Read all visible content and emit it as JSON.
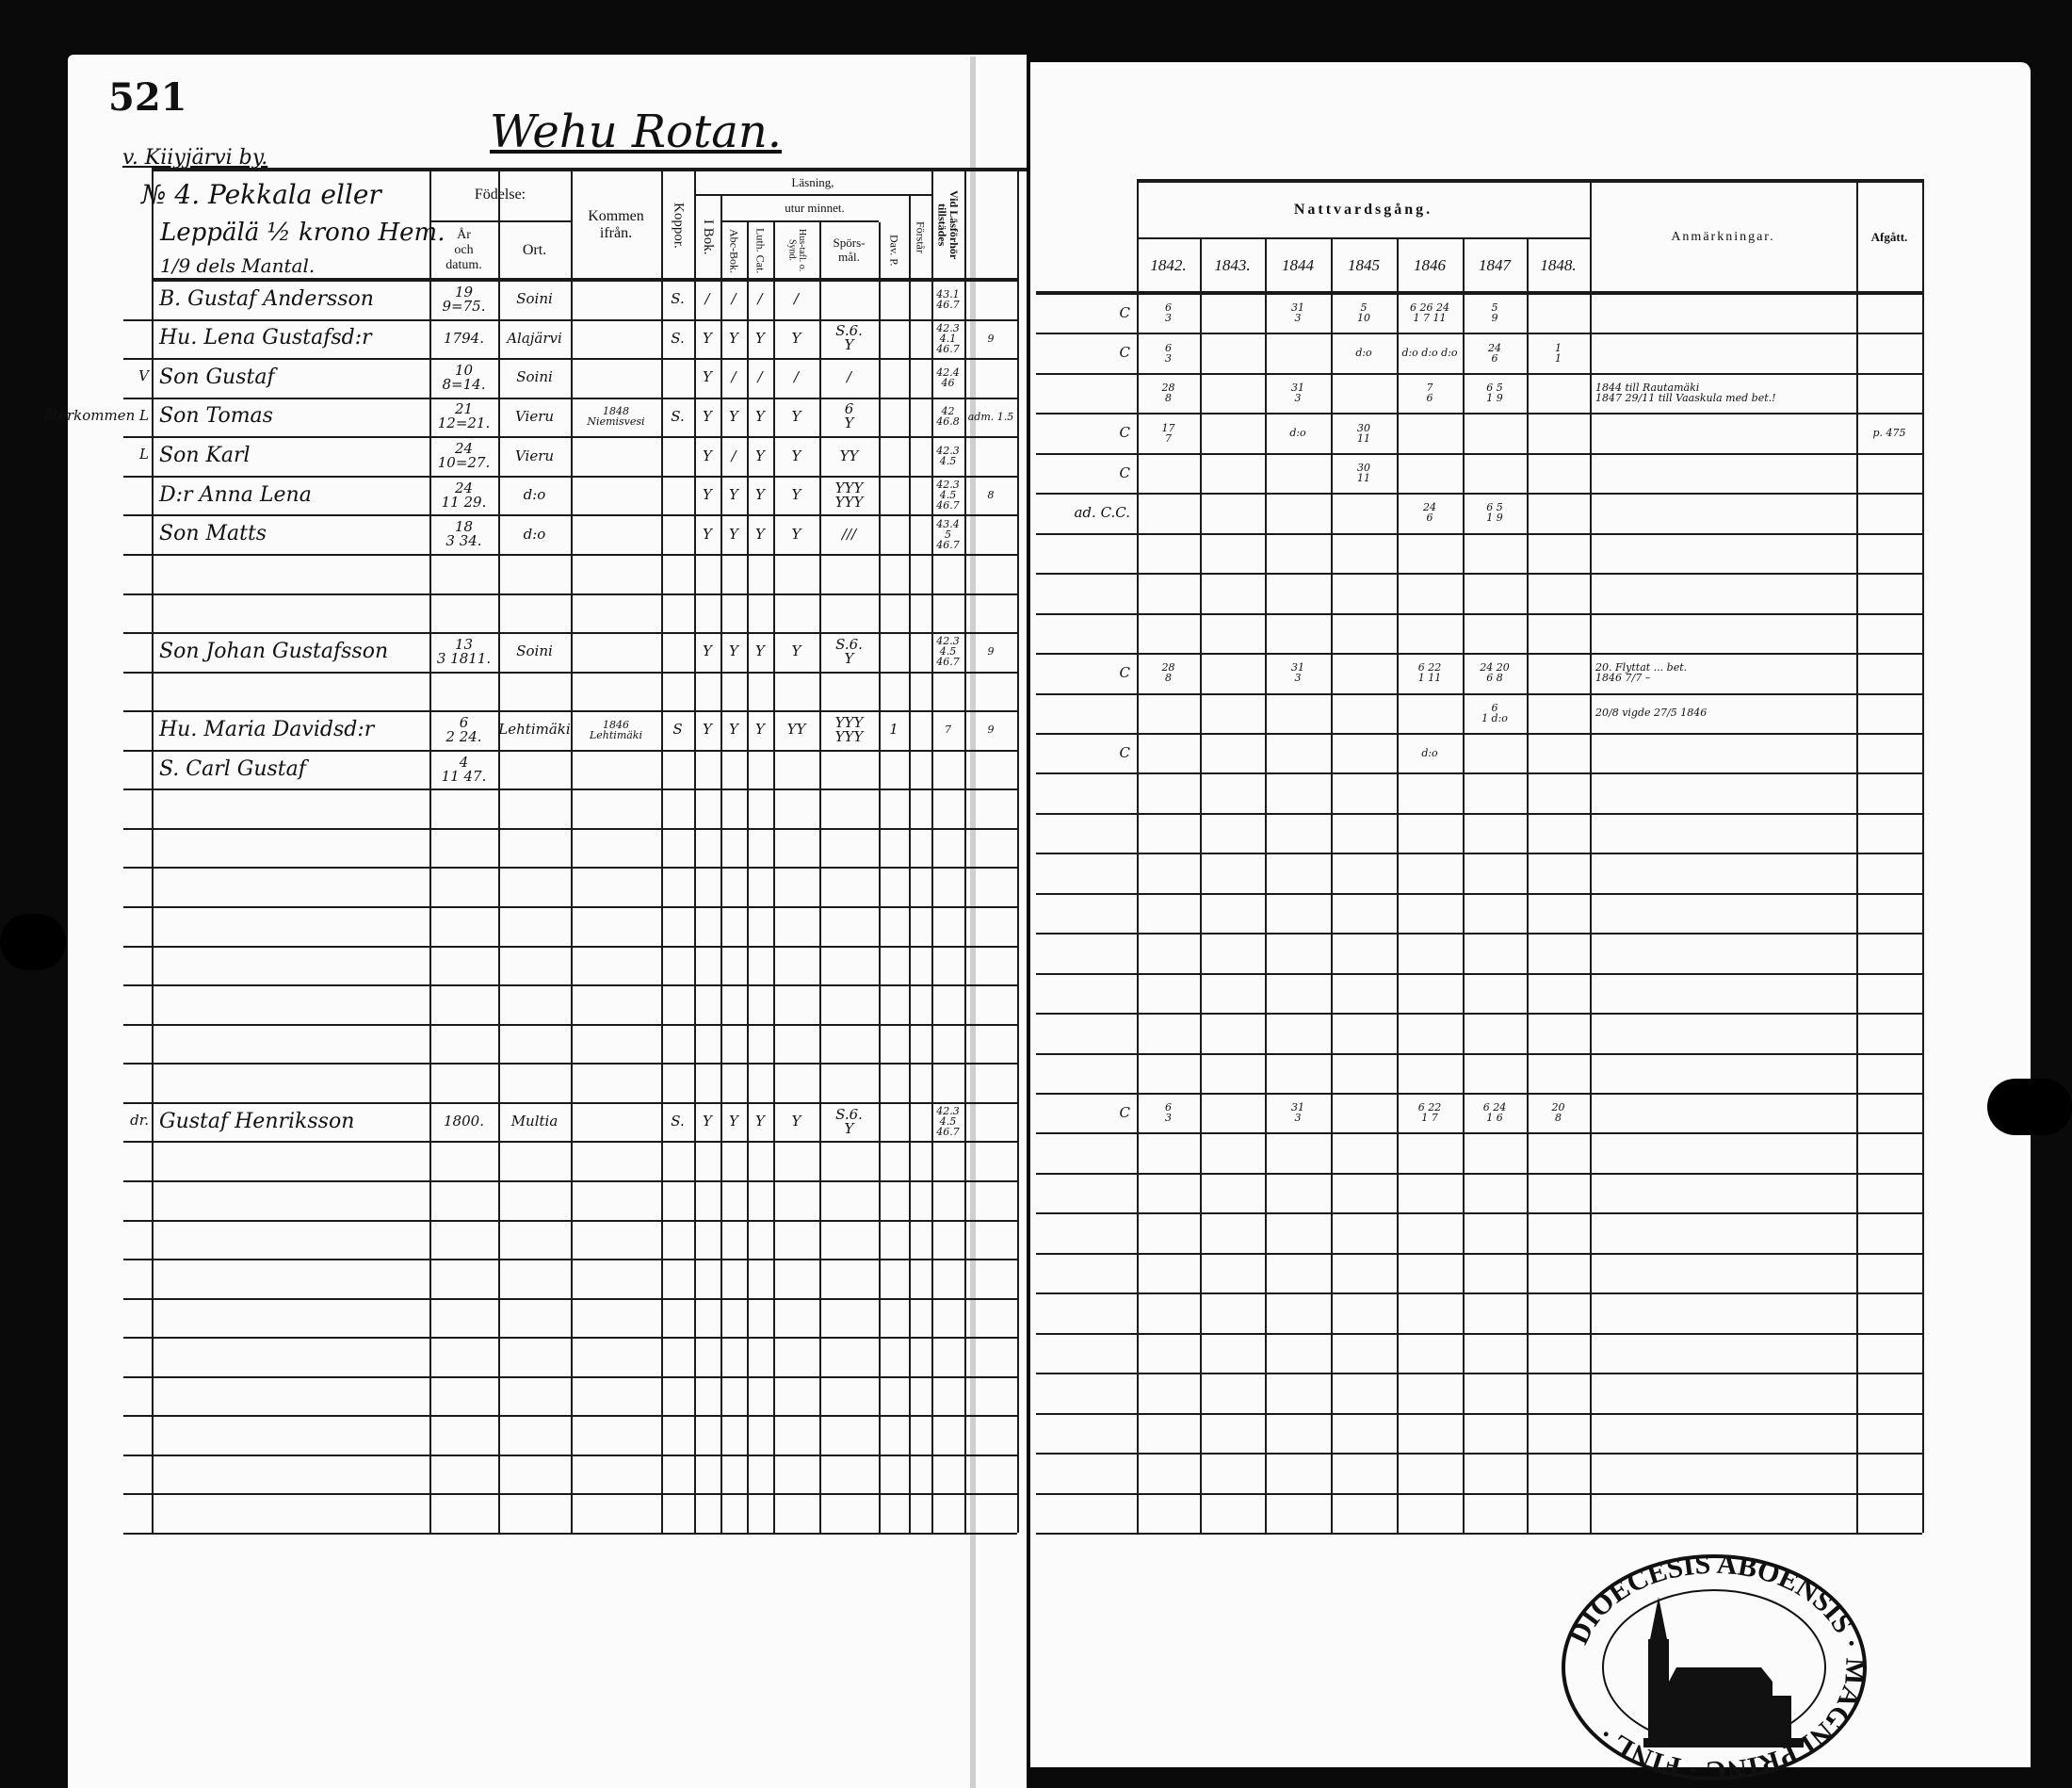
{
  "left_page": {
    "page_number": "521",
    "village": "v. Kiiyjärvi by.",
    "title": "Wehu Rotan.",
    "household": [
      "№ 4. Pekkala eller",
      "Leppälä ½ krono Hem.",
      "1/9 dels Mantal."
    ],
    "headers": {
      "fodelse": "Födelse:",
      "ar_och_datum": "År\noch\ndatum.",
      "ort": "Ort.",
      "kommen_ifran": "Kommen\nifrån.",
      "koppor": "Koppor.",
      "lasning": "Läsning,",
      "utur_minnet": "utur minnet.",
      "i_bok": "I Bok.",
      "abc_bok": "Abc-Bok.",
      "luth_cat": "Luth. Cat.",
      "hus_tafl": "Hus-tafl. o. Synd.",
      "spors_mal": "Spörs-\nmål.",
      "dav_p": "Dav. P.",
      "forstar": "Förstår",
      "vid_lasforhor": "Vid Läsförhör tillstädes"
    },
    "rows": [
      {
        "row": 0,
        "margin": "",
        "values": [
          "B. Gustaf Andersson",
          "19\n9=75.",
          "Soini",
          "",
          "S.",
          "/",
          "/",
          "/",
          "/",
          "",
          "",
          "",
          "43.1\n46.7",
          ""
        ]
      },
      {
        "row": 1,
        "margin": "",
        "values": [
          "Hu. Lena Gustafsd:r",
          "1794.",
          "Alajärvi",
          "",
          "S.",
          "Y",
          "Y",
          "Y",
          "Y",
          "S.6.\nY",
          "",
          "",
          "42.3\n4.1\n46.7",
          "9"
        ]
      },
      {
        "row": 2,
        "margin": "V",
        "values": [
          "Son Gustaf",
          "10\n8=14.",
          "Soini",
          "",
          "",
          "Y",
          "/",
          "/",
          "/",
          "/",
          "",
          "",
          "42.4\n46",
          ""
        ]
      },
      {
        "row": 3,
        "margin": "återkommen L",
        "values": [
          "Son Tomas",
          "21\n12=21.",
          "Vieru",
          "1848\nNiemisvesi",
          "S.",
          "Y",
          "Y",
          "Y",
          "Y",
          "6\nY",
          "",
          "",
          "42\n46.8",
          "adm. 1.5"
        ]
      },
      {
        "row": 4,
        "margin": "L",
        "values": [
          "Son Karl",
          "24\n10=27.",
          "Vieru",
          "",
          "",
          "Y",
          "/",
          "Y",
          "Y",
          "YY",
          "",
          "",
          "42.3\n4.5",
          ""
        ]
      },
      {
        "row": 5,
        "margin": "",
        "values": [
          "D:r Anna Lena",
          "24\n11 29.",
          "d:o",
          "",
          "",
          "Y",
          "Y",
          "Y",
          "Y",
          "YYY\nYYY",
          "",
          "",
          "42.3\n4.5\n46.7",
          "8"
        ]
      },
      {
        "row": 6,
        "margin": "",
        "values": [
          "Son Matts",
          "18\n3 34.",
          "d:o",
          "",
          "",
          "Y",
          "Y",
          "Y",
          "Y",
          "///",
          "",
          "",
          "43.4\n5\n46.7",
          ""
        ]
      },
      {
        "row": 9,
        "margin": "",
        "values": [
          "Son Johan Gustafsson",
          "13\n3 1811.",
          "Soini",
          "",
          "",
          "Y",
          "Y",
          "Y",
          "Y",
          "S.6.\nY",
          "",
          "",
          "42.3\n4.5\n46.7",
          "9"
        ]
      },
      {
        "row": 11,
        "margin": "",
        "values": [
          "Hu. Maria Davidsd:r",
          "6\n2 24.",
          "Lehtimäki",
          "1846\nLehtimäki",
          "S",
          "Y",
          "Y",
          "Y",
          "YY",
          "YYY\nYYY",
          "1",
          "",
          "7",
          "9"
        ]
      },
      {
        "row": 12,
        "margin": "",
        "values": [
          "S. Carl Gustaf",
          "4\n11 47.",
          "",
          "",
          "",
          "",
          "",
          "",
          "",
          "",
          "",
          "",
          "",
          ""
        ]
      },
      {
        "row": 21,
        "margin": "dr.",
        "values": [
          "Gustaf Henriksson",
          "1800.",
          "Multia",
          "",
          "S.",
          "Y",
          "Y",
          "Y",
          "Y",
          "S.6.\nY",
          "",
          "",
          "42.3\n4.5\n46.7",
          ""
        ]
      }
    ]
  },
  "right_page": {
    "headers": {
      "nattvardsgang": "Nattvardsgång.",
      "years": [
        "1842.",
        "1843.",
        "1844",
        "1845",
        "1846",
        "1847",
        "1848."
      ],
      "anmarkningar": "Anmärkningar.",
      "afgatt": "Afgått."
    },
    "rows": [
      {
        "row": 0,
        "margin": "C",
        "values": [
          "6\n3",
          "",
          "31\n3",
          "5\n10",
          "6 26 24\n1 7 11",
          "5\n9",
          "",
          "",
          ""
        ]
      },
      {
        "row": 1,
        "margin": "C",
        "values": [
          "6\n3",
          "",
          "",
          "d:o",
          "d:o d:o d:o",
          "24\n6",
          "1\n1",
          "",
          ""
        ]
      },
      {
        "row": 2,
        "margin": "",
        "values": [
          "28\n8",
          "",
          "31\n3",
          "",
          "7\n6",
          "6  5\n1  9",
          "",
          "1844 till Rautamäki\n1847 29/11 till Vaaskula med bet.!",
          ""
        ]
      },
      {
        "row": 3,
        "margin": "C",
        "values": [
          "17\n7",
          "",
          "d:o",
          "30\n11",
          "",
          "",
          "",
          "",
          "p. 475"
        ]
      },
      {
        "row": 4,
        "margin": "C",
        "values": [
          "",
          "",
          "",
          "30\n11",
          "",
          "",
          "",
          "",
          ""
        ]
      },
      {
        "row": 5,
        "margin": "ad. C.C.",
        "values": [
          "",
          "",
          "",
          "",
          "24\n6",
          "6  5\n1  9",
          "",
          "",
          ""
        ]
      },
      {
        "row": 9,
        "margin": "C",
        "values": [
          "28\n8",
          "",
          "31\n3",
          "",
          "6  22\n1  11",
          "24  20\n6  8",
          "",
          "20. Flyttat ... bet.\n1846 7/7 –",
          ""
        ]
      },
      {
        "row": 10,
        "margin": "",
        "values": [
          "",
          "",
          "",
          "",
          "",
          "6\n1 d:o",
          "",
          "20/8 vigde 27/5 1846",
          ""
        ]
      },
      {
        "row": 11,
        "margin": "C",
        "values": [
          "",
          "",
          "",
          "",
          "d:o",
          "",
          "",
          "",
          ""
        ]
      },
      {
        "row": 20,
        "margin": "C",
        "values": [
          "6\n3",
          "",
          "31\n3",
          "",
          "6  22\n1  7",
          "6  24\n1  6",
          "20\n8",
          "",
          ""
        ]
      }
    ],
    "stamp_text": "DIOECESIS ABOENSIS · MAGNI PRINC · FINL ·"
  },
  "colors": {
    "background": "#0a0a0a",
    "paper": "#fbfbfb",
    "ink": "#111111"
  }
}
